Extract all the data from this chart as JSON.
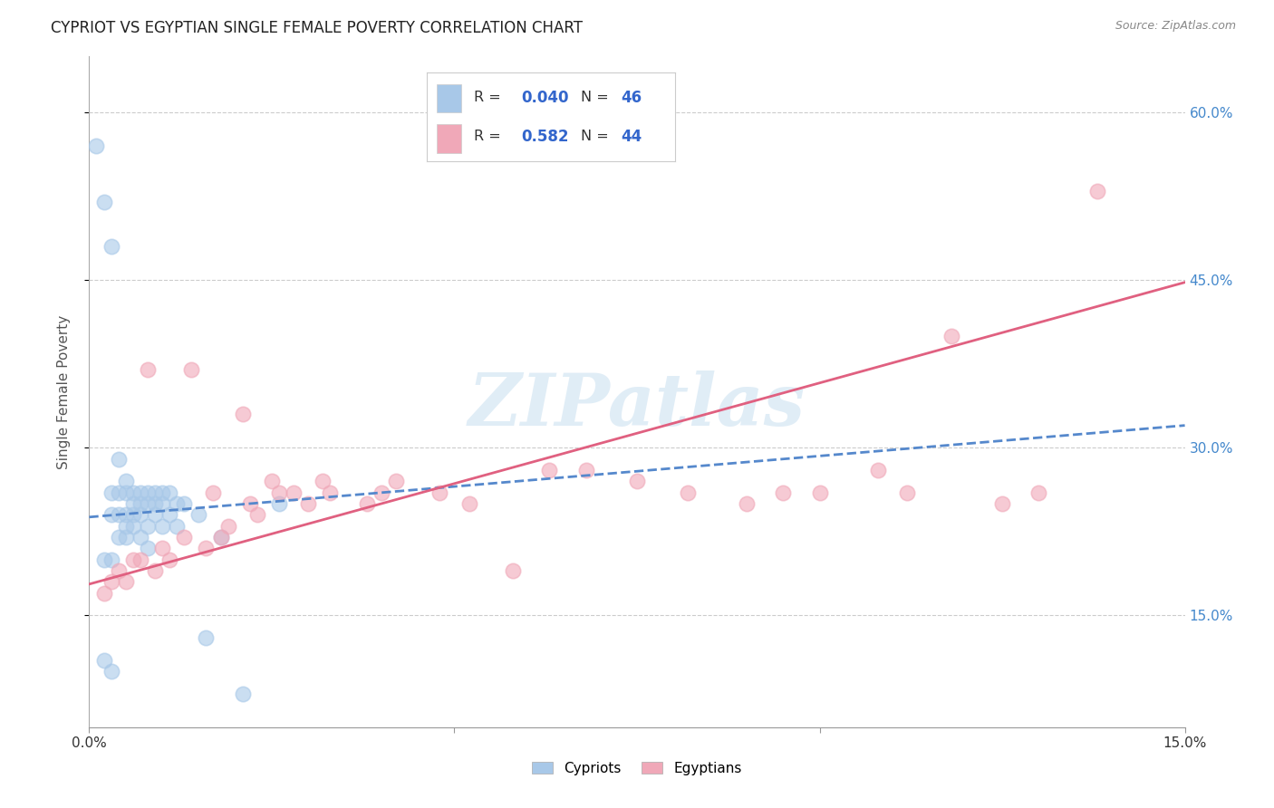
{
  "title": "CYPRIOT VS EGYPTIAN SINGLE FEMALE POVERTY CORRELATION CHART",
  "source": "Source: ZipAtlas.com",
  "ylabel": "Single Female Poverty",
  "xlim": [
    0.0,
    0.15
  ],
  "ylim": [
    0.05,
    0.65
  ],
  "color_cypriot": "#A8C8E8",
  "color_egyptian": "#F0A8B8",
  "color_line_cypriot": "#5588CC",
  "color_line_egyptian": "#E06080",
  "watermark_text": "ZIPatlas",
  "background_color": "#ffffff",
  "grid_color": "#cccccc",
  "cypriot_x": [
    0.001,
    0.002,
    0.002,
    0.002,
    0.003,
    0.003,
    0.003,
    0.003,
    0.003,
    0.004,
    0.004,
    0.004,
    0.004,
    0.005,
    0.005,
    0.005,
    0.005,
    0.005,
    0.006,
    0.006,
    0.006,
    0.006,
    0.007,
    0.007,
    0.007,
    0.007,
    0.008,
    0.008,
    0.008,
    0.008,
    0.009,
    0.009,
    0.009,
    0.01,
    0.01,
    0.01,
    0.011,
    0.011,
    0.012,
    0.012,
    0.013,
    0.015,
    0.016,
    0.018,
    0.021,
    0.026
  ],
  "cypriot_y": [
    0.57,
    0.52,
    0.2,
    0.11,
    0.48,
    0.26,
    0.24,
    0.2,
    0.1,
    0.29,
    0.26,
    0.24,
    0.22,
    0.27,
    0.26,
    0.24,
    0.23,
    0.22,
    0.26,
    0.25,
    0.24,
    0.23,
    0.26,
    0.25,
    0.24,
    0.22,
    0.26,
    0.25,
    0.23,
    0.21,
    0.26,
    0.25,
    0.24,
    0.26,
    0.25,
    0.23,
    0.26,
    0.24,
    0.25,
    0.23,
    0.25,
    0.24,
    0.13,
    0.22,
    0.08,
    0.25
  ],
  "egyptian_x": [
    0.002,
    0.003,
    0.004,
    0.005,
    0.006,
    0.007,
    0.008,
    0.009,
    0.01,
    0.011,
    0.013,
    0.014,
    0.016,
    0.017,
    0.018,
    0.019,
    0.021,
    0.022,
    0.023,
    0.025,
    0.026,
    0.028,
    0.03,
    0.032,
    0.033,
    0.038,
    0.04,
    0.042,
    0.048,
    0.052,
    0.058,
    0.063,
    0.068,
    0.075,
    0.082,
    0.09,
    0.095,
    0.1,
    0.108,
    0.112,
    0.118,
    0.125,
    0.13,
    0.138
  ],
  "egyptian_y": [
    0.17,
    0.18,
    0.19,
    0.18,
    0.2,
    0.2,
    0.37,
    0.19,
    0.21,
    0.2,
    0.22,
    0.37,
    0.21,
    0.26,
    0.22,
    0.23,
    0.33,
    0.25,
    0.24,
    0.27,
    0.26,
    0.26,
    0.25,
    0.27,
    0.26,
    0.25,
    0.26,
    0.27,
    0.26,
    0.25,
    0.19,
    0.28,
    0.28,
    0.27,
    0.26,
    0.25,
    0.26,
    0.26,
    0.28,
    0.26,
    0.4,
    0.25,
    0.26,
    0.53
  ],
  "cyp_line_x": [
    0.0,
    0.15
  ],
  "cyp_line_y": [
    0.238,
    0.32
  ],
  "egy_line_x": [
    0.0,
    0.15
  ],
  "egy_line_y": [
    0.178,
    0.448
  ]
}
